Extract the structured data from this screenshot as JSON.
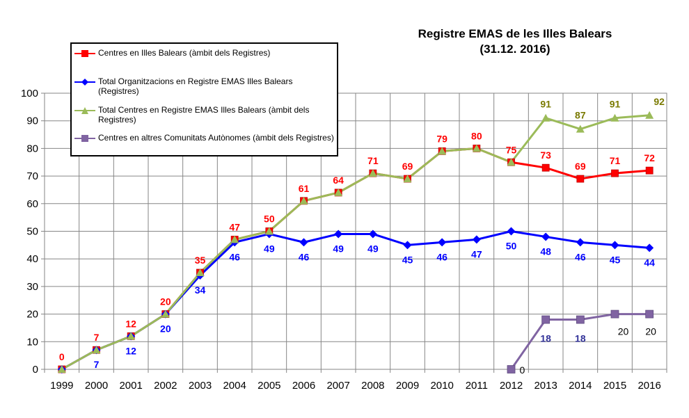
{
  "chart_data": {
    "type": "line",
    "title_line1": "Registre  EMAS de les Illes Balears",
    "title_line2": "(31.12. 2016)",
    "x": [
      "1999",
      "2000",
      "2001",
      "2002",
      "2003",
      "2004",
      "2005",
      "2006",
      "2007",
      "2008",
      "2009",
      "2010",
      "2011",
      "2012",
      "2013",
      "2014",
      "2015",
      "2016"
    ],
    "ylim": [
      0,
      100
    ],
    "yticks": [
      0,
      10,
      20,
      30,
      40,
      50,
      60,
      70,
      80,
      90,
      100
    ],
    "grid": true,
    "legend_position": "top-left",
    "series": [
      {
        "name": "Centres en Illes Balears  (àmbit dels Registres)",
        "color": "#ff0000",
        "marker": "square",
        "values": [
          0,
          7,
          12,
          20,
          35,
          47,
          50,
          61,
          64,
          71,
          69,
          79,
          80,
          75,
          73,
          69,
          71,
          72
        ]
      },
      {
        "name": "Total Organitzacions en Registre EMAS Illes Balears (Registres)",
        "color": "#0000ff",
        "marker": "diamond",
        "values": [
          0,
          7,
          12,
          20,
          34,
          46,
          49,
          46,
          49,
          49,
          45,
          46,
          47,
          50,
          48,
          46,
          45,
          44
        ]
      },
      {
        "name": "Total Centres  en Registre EMAS Illes Balears (àmbit dels Registres)",
        "color": "#9bbb59",
        "marker": "triangle",
        "values": [
          0,
          7,
          12,
          20,
          35,
          47,
          50,
          61,
          64,
          71,
          69,
          79,
          80,
          75,
          91,
          87,
          91,
          92
        ]
      },
      {
        "name": "Centres en altres Comunitats Autònomes (àmbit dels Registres)",
        "color": "#8064a2",
        "marker": "square",
        "values": [
          null,
          null,
          null,
          null,
          null,
          null,
          null,
          null,
          null,
          null,
          null,
          null,
          null,
          0,
          18,
          18,
          20,
          20
        ]
      }
    ],
    "data_labels": [
      {
        "series": 0,
        "color": "#ff0000",
        "values": [
          0,
          7,
          12,
          20,
          35,
          47,
          50,
          61,
          64,
          71,
          69,
          79,
          80,
          75,
          73,
          69,
          71,
          72
        ]
      },
      {
        "series": 1,
        "color": "#0000ff",
        "values": [
          null,
          7,
          12,
          20,
          34,
          46,
          49,
          46,
          49,
          49,
          45,
          46,
          47,
          50,
          48,
          46,
          45,
          44
        ]
      },
      {
        "series": 2,
        "color": "#7a7a00",
        "values": [
          null,
          null,
          null,
          null,
          null,
          null,
          null,
          null,
          null,
          null,
          null,
          null,
          null,
          null,
          91,
          87,
          91,
          92
        ]
      },
      {
        "series": 3,
        "colors": [
          "#000000",
          "#333399",
          "#333399",
          "#000000",
          "#000000"
        ],
        "values": [
          null,
          null,
          null,
          null,
          null,
          null,
          null,
          null,
          null,
          null,
          null,
          null,
          null,
          0,
          18,
          18,
          20,
          20
        ]
      }
    ]
  }
}
